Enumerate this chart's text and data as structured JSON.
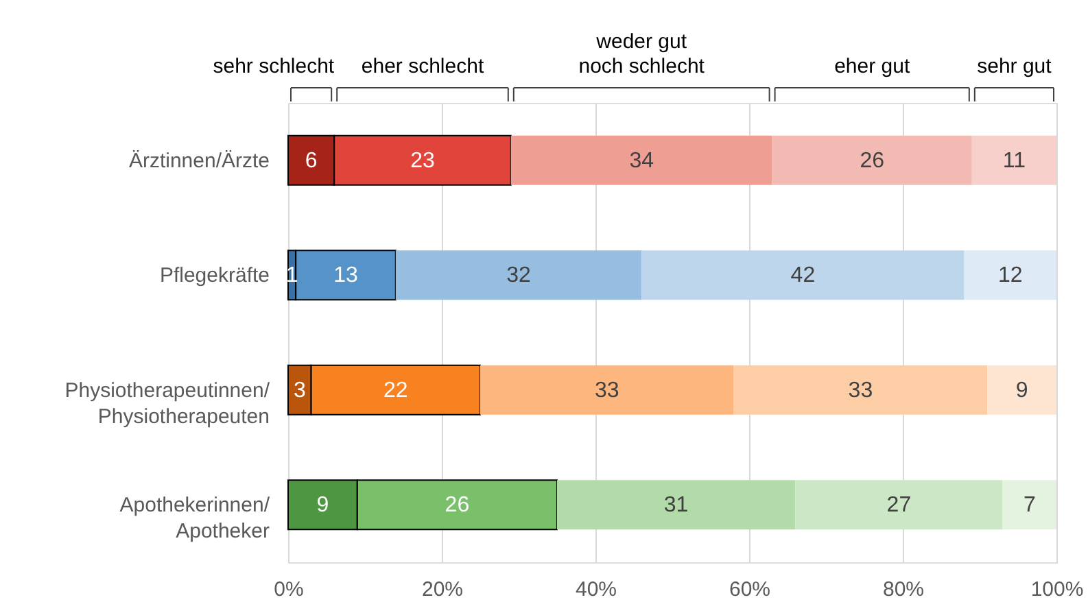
{
  "chart_data": {
    "type": "bar",
    "orientation": "horizontal",
    "stacked": true,
    "legend": "top",
    "grid": "x",
    "data_labels": true,
    "categories": [
      "Ärztinnen/Ärzte",
      "Pflegekräfte",
      "Physiotherapeutinnen/\nPhysiotherapeuten",
      "Apothekerinnen/\nApotheker"
    ],
    "series": [
      {
        "name": "sehr schlecht",
        "colors": [
          "#a52317",
          "#3a6fa8",
          "#b9560c",
          "#4f9642"
        ],
        "values": [
          6,
          1,
          3,
          9
        ]
      },
      {
        "name": "eher schlecht",
        "colors": [
          "#e0443a",
          "#5593c8",
          "#f7821f",
          "#7abf6a"
        ],
        "values": [
          23,
          13,
          22,
          26
        ]
      },
      {
        "name": "weder gut\nnoch schlecht",
        "colors": [
          "#ef9e94",
          "#97bde0",
          "#fdb67e",
          "#b3dba9"
        ],
        "values": [
          34,
          32,
          33,
          31
        ]
      },
      {
        "name": "eher gut",
        "colors": [
          "#f3bab3",
          "#bdd6eb",
          "#fdcda6",
          "#cce7c6"
        ],
        "values": [
          26,
          42,
          33,
          27
        ]
      },
      {
        "name": "sehr gut",
        "colors": [
          "#f7d0cb",
          "#deeaf5",
          "#fee5d1",
          "#e4f2e0"
        ],
        "values": [
          11,
          12,
          9,
          7
        ]
      }
    ],
    "xlim": [
      0,
      100
    ],
    "xticks": [
      {
        "value": 0,
        "label": "0%"
      },
      {
        "value": 20,
        "label": "20%"
      },
      {
        "value": 40,
        "label": "40%"
      },
      {
        "value": 60,
        "label": "60%"
      },
      {
        "value": 80,
        "label": "80%"
      },
      {
        "value": 100,
        "label": "100%"
      }
    ]
  }
}
